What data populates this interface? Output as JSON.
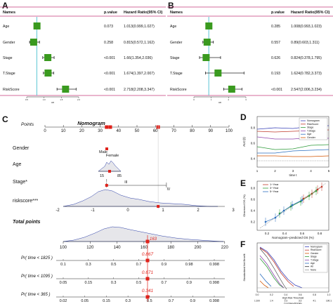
{
  "panels": {
    "A": {
      "letter": "A",
      "headers": [
        "Names",
        "p.value",
        "Hazard Ratio(95% CI)"
      ],
      "rows": [
        {
          "name": "Age",
          "p": "0.073",
          "hr": "1.013(0.999,1.027)",
          "est": 1.013,
          "lo": 0.999,
          "hi": 1.027
        },
        {
          "name": "Gender",
          "p": "0.258",
          "hr": "0.815(0.572,1.162)",
          "est": 0.815,
          "lo": 0.572,
          "hi": 1.162
        },
        {
          "name": "Stage",
          "p": "<0.001",
          "hr": "1.66(1.354,2.036)",
          "est": 1.66,
          "lo": 1.354,
          "hi": 2.036
        },
        {
          "name": "T.Stage",
          "p": "<0.001",
          "hr": "1.674(1.397,2.007)",
          "est": 1.674,
          "lo": 1.397,
          "hi": 2.007
        },
        {
          "name": "RiskScore",
          "p": "<0.001",
          "hr": "2.718(2.208,3.347)",
          "est": 2.718,
          "lo": 2.208,
          "hi": 3.347
        }
      ],
      "axis_ticks": [
        "0.5",
        "1.0",
        "1.5",
        "2.0"
      ],
      "axis_label": "HR"
    },
    "B": {
      "letter": "B",
      "headers": [
        "Names",
        "p.value",
        "Hazard Ratio(95% CI)"
      ],
      "rows": [
        {
          "name": "Age",
          "p": "0.285",
          "hr": "1.008(0.993,1.023)",
          "est": 1.008,
          "lo": 0.993,
          "hi": 1.023
        },
        {
          "name": "Gender",
          "p": "0.557",
          "hr": "0.89(0.603,1.311)",
          "est": 0.89,
          "lo": 0.603,
          "hi": 1.311
        },
        {
          "name": "Stage",
          "p": "0.626",
          "hr": "0.824(0.378,1.795)",
          "est": 0.824,
          "lo": 0.378,
          "hi": 1.795
        },
        {
          "name": "T.Stage",
          "p": "0.193",
          "hr": "1.624(0.782,3.373)",
          "est": 1.624,
          "lo": 0.782,
          "hi": 3.373
        },
        {
          "name": "RiskScore",
          "p": "<0.001",
          "hr": "2.547(2.006,3.234)",
          "est": 2.547,
          "lo": 2.006,
          "hi": 3.234
        }
      ],
      "axis_ticks": [
        "0",
        "1",
        "2",
        "3"
      ],
      "axis_label": "HR"
    },
    "C": {
      "letter": "C",
      "title": "Nomogram",
      "points_label": "Points",
      "points_ticks": [
        "0",
        "10",
        "20",
        "30",
        "40",
        "50",
        "60",
        "70",
        "80",
        "90",
        "100"
      ],
      "gender_label": "Gender",
      "gender_levels": [
        "Male",
        "Female"
      ],
      "age_label": "Age",
      "age_ticks": [
        "15",
        "85"
      ],
      "stage_label": "Stage*",
      "stage_levels": [
        "I",
        "III",
        "IV"
      ],
      "riskscore_label": "riskscore***",
      "riskscore_ticks": [
        "-2",
        "-1",
        "0",
        "1",
        "2",
        "3"
      ],
      "total_label": "Total points",
      "total_ticks": [
        "100",
        "120",
        "140",
        "160",
        "180",
        "200",
        "220"
      ],
      "total_value": "163",
      "prob_rows": [
        {
          "label": "Pr( time < 1825 )",
          "value": "0.867",
          "ticks": [
            "0.1",
            "0.3",
            "0.5",
            "0.7",
            "0.9",
            "0.98",
            "0.998"
          ]
        },
        {
          "label": "Pr( time < 1095 )",
          "value": "0.671",
          "ticks": [
            "0.05",
            "0.15",
            "0.3",
            "0.5",
            "0.7",
            "0.9",
            "0.998"
          ]
        },
        {
          "label": "Pr( time < 365 )",
          "value": "0.341",
          "ticks": [
            "0.02",
            "0.05",
            "0.15",
            "0.3",
            "0.5",
            "0.7",
            "0.9",
            "0.998"
          ]
        }
      ]
    },
    "D": {
      "letter": "D",
      "ylabel": "AUC(t)",
      "xlabel": "time t",
      "x_ticks": [
        "1",
        "2",
        "3",
        "4",
        "5"
      ],
      "y_ticks": [
        "0.4",
        "0.6",
        "0.8"
      ],
      "legend": [
        "Nomogram",
        "RiskScore",
        "Stage",
        "T.Stage",
        "Age",
        "Gender"
      ]
    },
    "E": {
      "letter": "E",
      "ylabel": "Observed OS (%)",
      "xlabel": "Nomogram−predicted OS (%)",
      "x_ticks": [
        "0.2",
        "0.4",
        "0.6",
        "0.8"
      ],
      "y_ticks": [
        "0.2",
        "0.4",
        "0.6",
        "0.8"
      ],
      "legend": [
        "1−Year",
        "3−Year",
        "5−Year"
      ]
    },
    "F": {
      "letter": "F",
      "ylabel": "Standardized Net Benefit",
      "xlabel": "High Risk Threshold",
      "xlabel2": "Cost:Benefit Ratio",
      "x_ticks": [
        "0.0",
        "0.2",
        "0.4",
        "0.6",
        "0.8",
        "1.0"
      ],
      "x_ticks2": [
        "1:100",
        "1:4",
        "2:3",
        "3:2",
        "4:1",
        "100:1"
      ],
      "legend": [
        "Nomogram",
        "RiskScore",
        "Gender",
        "Stage",
        "T.Stage",
        "Age",
        "All",
        "None"
      ]
    }
  },
  "colors": {
    "box": "#3a9a1f",
    "ref_line": "#31b8c9",
    "header_line": "#c53a7a",
    "marker": "#e0221b",
    "density_fill": "#e6e6ea",
    "density_line": "#2b3ea8",
    "nomogram": "#3b44b9",
    "riskscore": "#c0392b",
    "stage": "#2e9b3a",
    "tstage": "#8e44ad",
    "age": "#2c6fbf",
    "gender": "#d35400"
  }
}
